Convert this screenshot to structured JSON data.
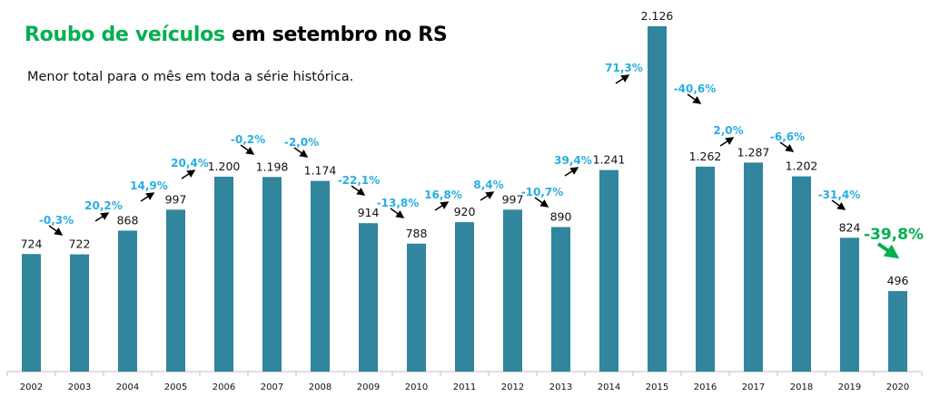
{
  "chart_data": {
    "type": "bar",
    "title_highlight": "Roubo de veículos",
    "title_rest": "em setembro no RS",
    "subtitle": "Menor total para o mês em toda a série histórica.",
    "categories": [
      "2002",
      "2003",
      "2004",
      "2005",
      "2006",
      "2007",
      "2008",
      "2009",
      "2010",
      "2011",
      "2012",
      "2013",
      "2014",
      "2015",
      "2016",
      "2017",
      "2018",
      "2019",
      "2020"
    ],
    "values": [
      724,
      722,
      868,
      997,
      1200,
      1198,
      1174,
      914,
      788,
      920,
      997,
      890,
      1241,
      2126,
      1262,
      1287,
      1202,
      824,
      496
    ],
    "value_labels": [
      "724",
      "722",
      "868",
      "997",
      "1.200",
      "1.198",
      "1.174",
      "914",
      "788",
      "920",
      "997",
      "890",
      "1.241",
      "2.126",
      "1.262",
      "1.287",
      "1.202",
      "824",
      "496"
    ],
    "changes": [
      null,
      "-0,3%",
      "20,2%",
      "14,9%",
      "20,4%",
      "-0,2%",
      "-2,0%",
      "-22,1%",
      "-13,8%",
      "16,8%",
      "8,4%",
      "-10,7%",
      "39,4%",
      "71,3%",
      "-40,6%",
      "2,0%",
      "-6,6%",
      "-31,4%",
      "-39,8%"
    ],
    "ylim": [
      0,
      2126
    ],
    "grid": false,
    "colors": {
      "bar": "#31859c",
      "change_label": "#29aee3",
      "highlight": "#00b050",
      "arrow": "#000000"
    }
  }
}
